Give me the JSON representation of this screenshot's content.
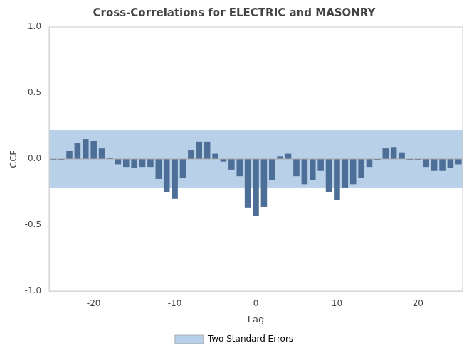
{
  "chart_data": {
    "type": "bar",
    "title": "Cross-Correlations for ELECTRIC and MASONRY",
    "xlabel": "Lag",
    "ylabel": "CCF",
    "x": [
      -25,
      -24,
      -23,
      -22,
      -21,
      -20,
      -19,
      -18,
      -17,
      -16,
      -15,
      -14,
      -13,
      -12,
      -11,
      -10,
      -9,
      -8,
      -7,
      -6,
      -5,
      -4,
      -3,
      -2,
      -1,
      0,
      1,
      2,
      3,
      4,
      5,
      6,
      7,
      8,
      9,
      10,
      11,
      12,
      13,
      14,
      15,
      16,
      17,
      18,
      19,
      20,
      21,
      22,
      23,
      24,
      25
    ],
    "values": [
      -0.01,
      -0.01,
      0.06,
      0.12,
      0.15,
      0.14,
      0.08,
      0.01,
      -0.04,
      -0.06,
      -0.07,
      -0.06,
      -0.06,
      -0.15,
      -0.25,
      -0.3,
      -0.14,
      0.07,
      0.13,
      0.13,
      0.04,
      -0.02,
      -0.08,
      -0.13,
      -0.37,
      -0.43,
      -0.36,
      -0.16,
      0.02,
      0.04,
      -0.13,
      -0.19,
      -0.16,
      -0.09,
      -0.25,
      -0.31,
      -0.22,
      -0.19,
      -0.14,
      -0.06,
      -0.01,
      0.08,
      0.09,
      0.05,
      -0.01,
      -0.01,
      -0.06,
      -0.09,
      -0.09,
      -0.07,
      -0.04
    ],
    "color": "#4d6e96",
    "xlim": [
      -25.5,
      25.5
    ],
    "ylim": [
      -1.0,
      1.0
    ],
    "xticks": [
      -20,
      -10,
      0,
      10,
      20
    ],
    "yticks": [
      {
        "value": -1.0,
        "label": "-1.0"
      },
      {
        "value": -0.5,
        "label": "-0.5"
      },
      {
        "value": 0.0,
        "label": "0.0"
      },
      {
        "value": 0.5,
        "label": "0.5"
      },
      {
        "value": 1.0,
        "label": "1.0"
      }
    ],
    "grid": false,
    "legend": "bottom",
    "confidence_band": {
      "name": "Two Standard Errors",
      "lower": -0.22,
      "upper": 0.22,
      "color": "#b8d0e8"
    },
    "reference_lines": [
      {
        "axis": "y",
        "value": 0,
        "color": "#aaaaaa"
      },
      {
        "axis": "x",
        "value": 0,
        "color": "#aaaaaa"
      }
    ]
  }
}
